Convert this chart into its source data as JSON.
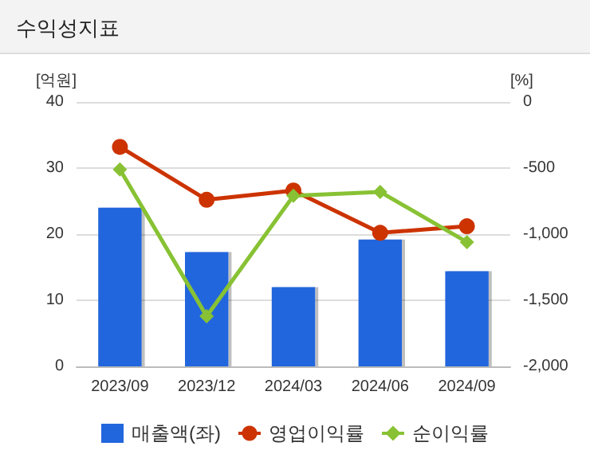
{
  "chart_data": {
    "type": "bar",
    "title": "수익성지표",
    "ylabel": "[억원]",
    "y2label": "[%]",
    "categories": [
      "2023/09",
      "2023/12",
      "2024/03",
      "2024/06",
      "2024/09"
    ],
    "series": [
      {
        "name": "매출액(좌)",
        "color": "#2266dd",
        "values": [
          24,
          17.3,
          12,
          19.2,
          14.4
        ]
      },
      {
        "name": "영업이익률",
        "type": "line",
        "axis": "y2",
        "marker": "circle",
        "color": "#cc3300",
        "values": [
          -340,
          -740,
          -670,
          -990,
          -940
        ]
      },
      {
        "name": "순이익률",
        "type": "line",
        "axis": "y2",
        "marker": "diamond",
        "color": "#88c234",
        "values": [
          -510,
          -1620,
          -710,
          -680,
          -1060
        ]
      }
    ],
    "ylim": [
      0,
      40
    ],
    "yticks": [
      0,
      10,
      20,
      30,
      40
    ],
    "y2lim": [
      -2000,
      0
    ],
    "y2ticks": [
      {
        "value": -2000,
        "label": "-2,000"
      },
      {
        "value": -1500,
        "label": "-1,500"
      },
      {
        "value": -1000,
        "label": "-1,000"
      },
      {
        "value": -500,
        "label": "-500"
      },
      0
    ],
    "grid": "y",
    "legend": "bottom"
  }
}
